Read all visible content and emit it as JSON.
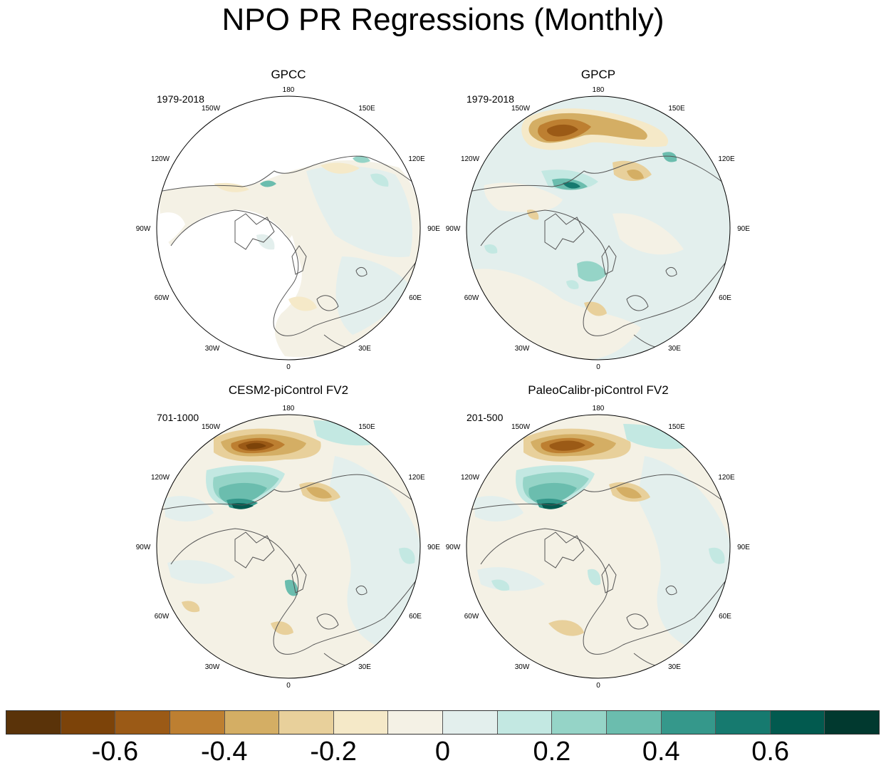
{
  "title": "NPO PR Regressions (Monthly)",
  "panels": [
    {
      "title": "GPCC",
      "period": "1979-2018"
    },
    {
      "title": "GPCP",
      "period": "1979-2018"
    },
    {
      "title": "CESM2-piControl FV2",
      "period": "701-1000"
    },
    {
      "title": "PaleoCalibr-piControl FV2",
      "period": "201-500"
    }
  ],
  "longitude_labels": [
    "180",
    "150E",
    "120E",
    "90E",
    "60E",
    "30E",
    "0",
    "30W",
    "60W",
    "90W",
    "120W",
    "150W"
  ],
  "colorbar": {
    "colors": [
      "#5a3309",
      "#7c4309",
      "#9b5a16",
      "#bd7f31",
      "#d4ae64",
      "#e8d09b",
      "#f5e9c8",
      "#f4f1e5",
      "#e3efed",
      "#c3e8e2",
      "#95d4c7",
      "#6bbdae",
      "#35988b",
      "#167a6f",
      "#025a4f",
      "#01392f"
    ],
    "tick_labels": [
      "-0.6",
      "-0.4",
      "-0.2",
      "0",
      "0.2",
      "0.4",
      "0.6"
    ]
  }
}
